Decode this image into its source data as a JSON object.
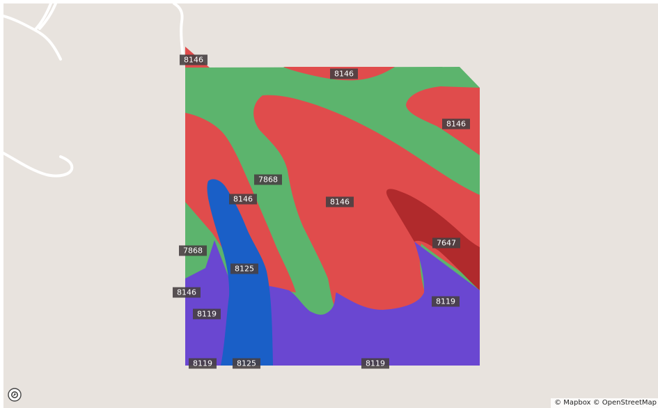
{
  "map": {
    "attribution": "© Mapbox © OpenStreetMap",
    "logo_icon": "mapbox-logo-icon",
    "colors": {
      "land": "#e8e3de",
      "road": "#ffffff",
      "zone_8146": "#e04c4c",
      "zone_7868": "#5cb46d",
      "zone_8125": "#1a5fc7",
      "zone_8119": "#6a47d1",
      "zone_7647": "#b02a2c",
      "label_bg": "#484042"
    }
  },
  "zone_labels": [
    {
      "id": "8146-a",
      "text": "8146"
    },
    {
      "id": "8146-b",
      "text": "8146"
    },
    {
      "id": "8146-c",
      "text": "8146"
    },
    {
      "id": "7868-a",
      "text": "7868"
    },
    {
      "id": "8146-d",
      "text": "8146"
    },
    {
      "id": "8146-e",
      "text": "8146"
    },
    {
      "id": "7868-b",
      "text": "7868"
    },
    {
      "id": "7647",
      "text": "7647"
    },
    {
      "id": "8125-a",
      "text": "8125"
    },
    {
      "id": "8146-f",
      "text": "8146"
    },
    {
      "id": "8119-a",
      "text": "8119"
    },
    {
      "id": "8119-b",
      "text": "8119"
    },
    {
      "id": "8119-c",
      "text": "8119"
    },
    {
      "id": "8125-b",
      "text": "8125"
    },
    {
      "id": "8119-d",
      "text": "8119"
    }
  ]
}
